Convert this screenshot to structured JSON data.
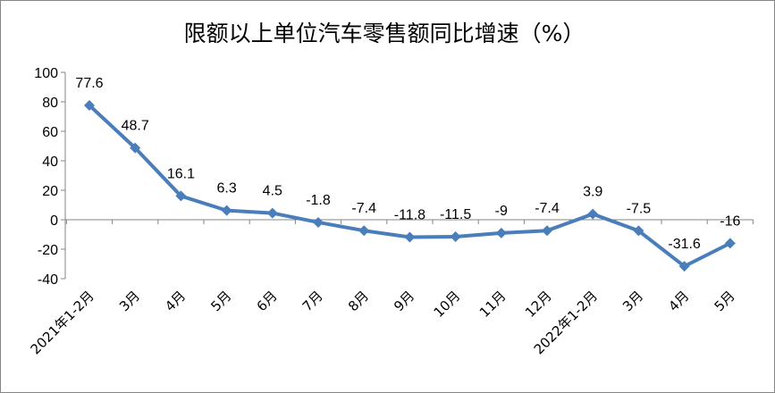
{
  "chart_data": {
    "type": "line",
    "title": "限额以上单位汽车零售额同比增速（%）",
    "xlabel": "",
    "ylabel": "",
    "categories": [
      "2021年1-2月",
      "3月",
      "4月",
      "5月",
      "6月",
      "7月",
      "8月",
      "9月",
      "10月",
      "11月",
      "12月",
      "2022年1-2月",
      "3月",
      "4月",
      "5月"
    ],
    "series": [
      {
        "values": [
          77.6,
          48.7,
          16.1,
          6.3,
          4.5,
          -1.8,
          -7.4,
          -11.8,
          -11.5,
          -9,
          -7.4,
          3.9,
          -7.5,
          -31.6,
          -16
        ],
        "data_labels": [
          "77.6",
          "48.7",
          "16.1",
          "6.3",
          "4.5",
          "-1.8",
          "-7.4",
          "-11.8",
          "-11.5",
          "-9",
          "-7.4",
          "3.9",
          "-7.5",
          "-31.6",
          "-16"
        ]
      }
    ],
    "ylim": [
      -40,
      100
    ],
    "yticks": [
      -40,
      -20,
      0,
      20,
      40,
      60,
      80,
      100
    ],
    "ytick_labels": [
      "-40",
      "-20",
      "0",
      "20",
      "40",
      "60",
      "80",
      "100"
    ],
    "grid": false,
    "legend": "none",
    "line_color": "#4a7ebb",
    "marker": "diamond"
  }
}
